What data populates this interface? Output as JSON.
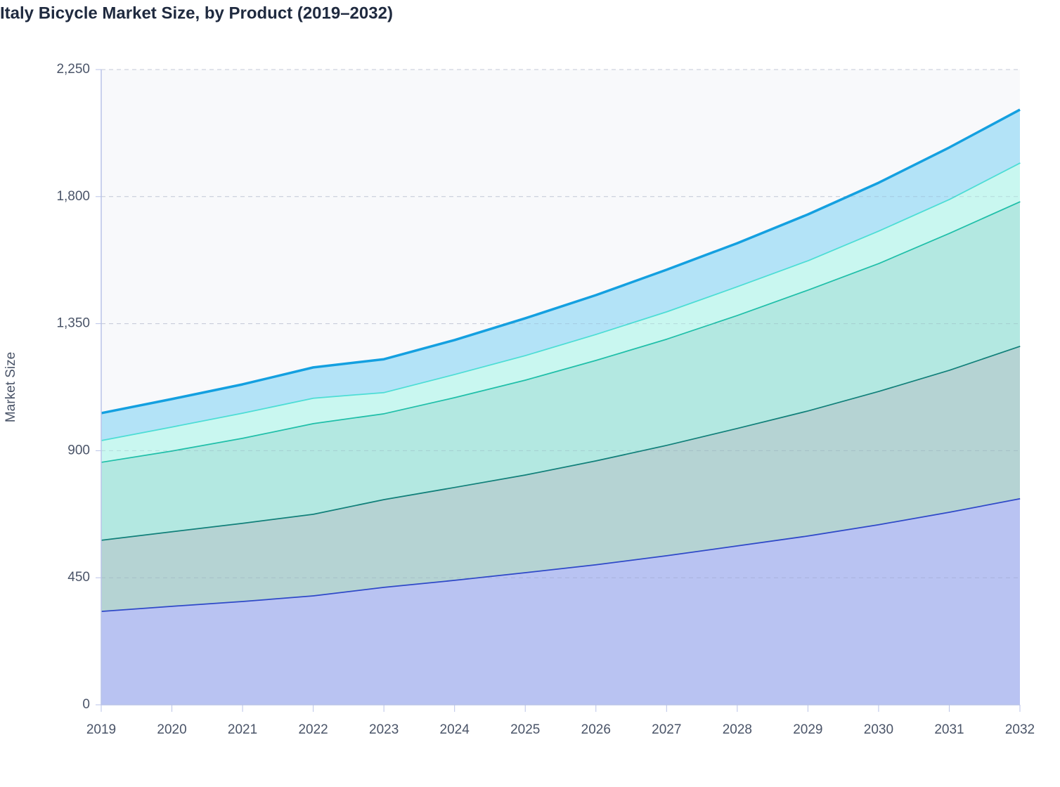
{
  "chart_data": {
    "type": "area",
    "stacked": true,
    "title": "Italy Bicycle Market Size, by Product (2019–2032)",
    "y_label": "Market Size",
    "x": [
      2019,
      2020,
      2021,
      2022,
      2023,
      2024,
      2025,
      2026,
      2027,
      2028,
      2029,
      2030,
      2031,
      2032
    ],
    "xlim": [
      2019,
      2032
    ],
    "xticks": [
      2019,
      2020,
      2021,
      2022,
      2023,
      2024,
      2025,
      2026,
      2027,
      2028,
      2029,
      2030,
      2031,
      2032
    ],
    "ylim": [
      0,
      2250
    ],
    "yticks": [
      0,
      450,
      900,
      {
        "value": 1350,
        "label": "1,350"
      },
      {
        "value": 1800,
        "label": "1,800"
      },
      {
        "value": 2250,
        "label": "2,250"
      }
    ],
    "grid": true,
    "series": [
      {
        "color": "#2f49c8",
        "fill": "#b9c3f2",
        "values": [
          333,
          351,
          368,
          388,
          418,
          443,
          470,
          498,
          530,
          565,
          600,
          640,
          684,
          732
        ]
      },
      {
        "color": "#11807a",
        "fill": "#b5d3d3",
        "values": [
          252,
          264,
          277,
          289,
          311,
          329,
          346,
          368,
          391,
          416,
          443,
          472,
          503,
          540
        ]
      },
      {
        "color": "#20bfa9",
        "fill": "#b3e8e1",
        "values": [
          276,
          286,
          301,
          321,
          304,
          318,
          336,
          356,
          376,
          400,
          428,
          453,
          485,
          512
        ]
      },
      {
        "color": "#4dddd5",
        "fill": "#c9f7f0",
        "values": [
          77,
          85,
          89,
          90,
          75,
          82,
          87,
          92,
          97,
          102,
          104,
          115,
          120,
          137
        ]
      },
      {
        "color": "#14a0e0",
        "fill": "#b3e3f7",
        "values": [
          95,
          97,
          100,
          107,
          116,
          120,
          130,
          137,
          147,
          152,
          162,
          169,
          182,
          187
        ]
      }
    ]
  }
}
